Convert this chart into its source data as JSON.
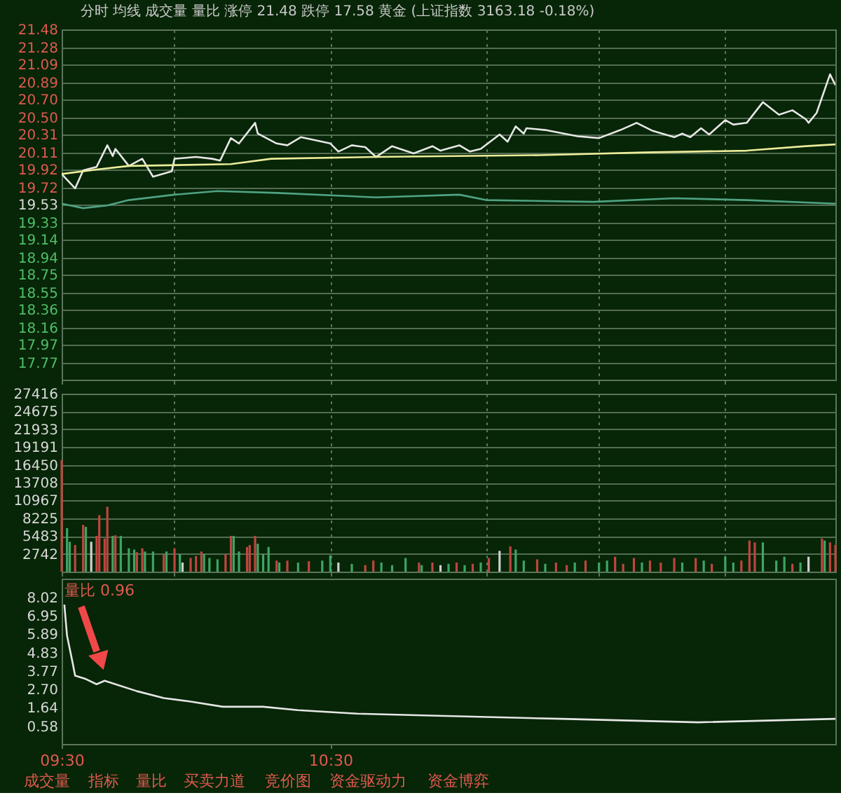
{
  "chart_data": [
    {
      "type": "line",
      "title": "分时 均线 成交量 量比 涨停 21.48 跌停 17.58 黄金 (上证指数 3163.18 -0.18%)",
      "series": [
        {
          "color": "#e6e6e6",
          "x": [
            9.5,
            9.55,
            9.58,
            9.63,
            9.67,
            9.69,
            9.7,
            9.75,
            9.8,
            9.84,
            9.91,
            9.92,
            10.0,
            10.06,
            10.09,
            10.13,
            10.16,
            10.22,
            10.23,
            10.3,
            10.34,
            10.39,
            10.5,
            10.53,
            10.58,
            10.63,
            10.67,
            10.73,
            10.81,
            10.88,
            10.91,
            10.98,
            11.02,
            11.06,
            11.13,
            11.16,
            11.19,
            11.22,
            11.23,
            11.3,
            11.42,
            11.5,
            11.58,
            11.64,
            11.7,
            11.78,
            11.81,
            11.84,
            11.88,
            11.91,
            11.97,
            12.0,
            12.05,
            12.11,
            12.17,
            12.22,
            12.27,
            12.28,
            12.31,
            12.36,
            12.38
          ],
          "values": [
            19.87,
            19.71,
            19.91,
            19.95,
            20.19,
            20.07,
            20.15,
            19.96,
            20.04,
            19.84,
            19.9,
            20.04,
            20.06,
            20.04,
            20.02,
            20.27,
            20.21,
            20.44,
            20.32,
            20.21,
            20.19,
            20.28,
            20.21,
            20.12,
            20.19,
            20.17,
            20.06,
            20.18,
            20.1,
            20.18,
            20.13,
            20.19,
            20.12,
            20.15,
            20.31,
            20.23,
            20.4,
            20.32,
            20.38,
            20.36,
            20.29,
            20.27,
            20.36,
            20.44,
            20.35,
            20.28,
            20.32,
            20.28,
            20.38,
            20.31,
            20.47,
            20.42,
            20.44,
            20.67,
            20.53,
            20.58,
            20.48,
            20.44,
            20.55,
            20.98,
            20.86
          ]
        },
        {
          "color": "#ecec9a",
          "x": [
            9.5,
            9.63,
            9.75,
            10.13,
            10.28,
            10.67,
            11.28,
            11.67,
            12.05,
            12.27,
            12.38
          ],
          "values": [
            19.87,
            19.92,
            19.96,
            19.98,
            20.04,
            20.06,
            20.08,
            20.11,
            20.13,
            20.18,
            20.2
          ]
        },
        {
          "color": "#4fa383",
          "x": [
            9.5,
            9.58,
            9.67,
            9.75,
            9.92,
            10.08,
            10.3,
            10.67,
            10.98,
            11.08,
            11.48,
            11.78,
            12.05,
            12.38
          ],
          "values": [
            19.54,
            19.49,
            19.52,
            19.58,
            19.64,
            19.68,
            19.66,
            19.61,
            19.64,
            19.58,
            19.56,
            19.6,
            19.58,
            19.54
          ]
        }
      ],
      "xlim": [
        9.5,
        12.38
      ],
      "xticks": [
        9.5,
        9.92,
        10.5,
        11.08,
        11.5,
        11.97
      ],
      "ylim": [
        17.58,
        21.48
      ],
      "yticks": [
        21.48,
        21.28,
        21.09,
        20.89,
        {
          "value": 20.7,
          "label": "20.70"
        },
        {
          "value": 20.5,
          "label": "20.50"
        },
        20.31,
        20.11,
        19.92,
        19.72,
        19.53,
        19.33,
        19.14,
        18.94,
        18.75,
        18.55,
        18.36,
        18.16,
        17.97,
        17.77
      ],
      "grid": true,
      "tick_labels": "y"
    },
    {
      "type": "bar",
      "x": [
        9.5,
        9.52,
        9.53,
        9.55,
        9.58,
        9.59,
        9.61,
        9.63,
        9.64,
        9.66,
        9.67,
        9.69,
        9.7,
        9.72,
        9.75,
        9.77,
        9.78,
        9.8,
        9.81,
        9.84,
        9.88,
        9.89,
        9.92,
        9.94,
        9.95,
        9.98,
        10.0,
        10.02,
        10.03,
        10.05,
        10.08,
        10.11,
        10.13,
        10.14,
        10.16,
        10.19,
        10.2,
        10.22,
        10.23,
        10.25,
        10.27,
        10.3,
        10.31,
        10.34,
        10.38,
        10.42,
        10.47,
        10.5,
        10.53,
        10.58,
        10.63,
        10.66,
        10.69,
        10.73,
        10.78,
        10.83,
        10.84,
        10.88,
        10.91,
        10.94,
        10.97,
        11.0,
        11.03,
        11.06,
        11.09,
        11.13,
        11.17,
        11.19,
        11.22,
        11.27,
        11.3,
        11.34,
        11.38,
        11.41,
        11.45,
        11.5,
        11.53,
        11.56,
        11.59,
        11.63,
        11.66,
        11.69,
        11.73,
        11.78,
        11.81,
        11.86,
        11.89,
        11.92,
        11.97,
        12.0,
        12.03,
        12.06,
        12.08,
        12.11,
        12.16,
        12.19,
        12.22,
        12.25,
        12.28,
        12.33,
        12.34,
        12.36,
        12.38
      ],
      "values": [
        17200,
        6700,
        4600,
        4100,
        7200,
        6900,
        4600,
        5500,
        8700,
        5100,
        10000,
        5500,
        5600,
        5500,
        3600,
        3400,
        3000,
        3600,
        3100,
        3100,
        2700,
        3100,
        3600,
        2700,
        1400,
        2100,
        2400,
        3100,
        2700,
        2100,
        1900,
        2700,
        5500,
        5500,
        3100,
        3800,
        4100,
        5500,
        4300,
        2700,
        3800,
        1700,
        1400,
        1700,
        1400,
        1600,
        1700,
        2500,
        1400,
        1200,
        1000,
        1700,
        1400,
        1000,
        2100,
        1400,
        1000,
        1400,
        1000,
        1200,
        1400,
        1000,
        1200,
        1400,
        2100,
        3200,
        3900,
        3400,
        1700,
        1900,
        1200,
        1400,
        1000,
        1400,
        1700,
        1400,
        1700,
        2300,
        1200,
        2100,
        1400,
        1700,
        1400,
        2100,
        1400,
        2100,
        1700,
        1200,
        2300,
        1400,
        1700,
        4800,
        4500,
        4500,
        1700,
        2300,
        1200,
        1400,
        2300,
        5100,
        4800,
        4500,
        4100
      ],
      "colors": [
        "#c0453f",
        "#3fa565",
        "#3fa565",
        "#c0453f",
        "#c0453f",
        "#3fa565",
        "#d0d0d0",
        "#c0453f",
        "#c0453f",
        "#c0453f",
        "#c0453f",
        "#3fa565",
        "#c0453f",
        "#3fa565",
        "#3fa565",
        "#3fa565",
        "#c0453f",
        "#c0453f",
        "#3fa565",
        "#3fa565",
        "#c0453f",
        "#3fa565",
        "#c0453f",
        "#3fa565",
        "#d0d0d0",
        "#c0453f",
        "#c0453f",
        "#c0453f",
        "#3fa565",
        "#3fa565",
        "#3fa565",
        "#c0453f",
        "#c0453f",
        "#3fa565",
        "#3fa565",
        "#c0453f",
        "#c0453f",
        "#c0453f",
        "#3fa565",
        "#3fa565",
        "#3fa565",
        "#c0453f",
        "#3fa565",
        "#c0453f",
        "#3fa565",
        "#c0453f",
        "#3fa565",
        "#3fa565",
        "#d0d0d0",
        "#3fa565",
        "#c0453f",
        "#c0453f",
        "#3fa565",
        "#3fa565",
        "#3fa565",
        "#c0453f",
        "#3fa565",
        "#c0453f",
        "#d0d0d0",
        "#3fa565",
        "#c0453f",
        "#3fa565",
        "#c0453f",
        "#3fa565",
        "#c0453f",
        "#d0d0d0",
        "#c0453f",
        "#3fa565",
        "#3fa565",
        "#c0453f",
        "#3fa565",
        "#c0453f",
        "#c0453f",
        "#3fa565",
        "#c0453f",
        "#3fa565",
        "#3fa565",
        "#c0453f",
        "#c0453f",
        "#c0453f",
        "#3fa565",
        "#c0453f",
        "#c0453f",
        "#c0453f",
        "#3fa565",
        "#c0453f",
        "#3fa565",
        "#c0453f",
        "#3fa565",
        "#3fa565",
        "#c0453f",
        "#c0453f",
        "#c0453f",
        "#3fa565",
        "#3fa565",
        "#3fa565",
        "#c0453f",
        "#3fa565",
        "#d0d0d0",
        "#c0453f",
        "#3fa565",
        "#c0453f",
        "#c0453f"
      ],
      "xlim": [
        9.5,
        12.38
      ],
      "xticks": [
        9.5,
        9.92,
        10.5,
        11.08,
        11.5,
        11.97
      ],
      "ylim": [
        0,
        27416
      ],
      "yticks": [
        2742,
        5483,
        8225,
        10967,
        13708,
        16450,
        19191,
        21933,
        24675,
        27416
      ],
      "grid": true,
      "tick_labels": "y"
    },
    {
      "type": "line",
      "series": [
        {
          "color": "#e6e6e6",
          "x": [
            9.51,
            9.52,
            9.54,
            9.55,
            9.59,
            9.63,
            9.66,
            9.68,
            9.78,
            9.88,
            9.98,
            10.1,
            10.25,
            10.38,
            10.6,
            10.85,
            11.36,
            11.87,
            12.38
          ],
          "values": [
            7.6,
            5.8,
            4.3,
            3.5,
            3.3,
            3.0,
            3.2,
            3.1,
            2.6,
            2.2,
            2.0,
            1.7,
            1.7,
            1.5,
            1.3,
            1.2,
            1.0,
            0.8,
            1.0
          ]
        }
      ],
      "xlim": [
        9.5,
        12.38
      ],
      "xticks": [
        {
          "value": 9.5,
          "label": "09:30"
        },
        {
          "value": 10.5,
          "label": "10:30"
        }
      ],
      "ylim": [
        -0.45,
        9.1
      ],
      "yticks": [
        0.58,
        1.64,
        {
          "value": 2.7,
          "label": "2.70"
        },
        3.77,
        4.83,
        5.89,
        6.95,
        8.02
      ],
      "grid": false,
      "annotations": [
        "量比 0.96",
        "成交量",
        "指标",
        "量比",
        "买卖力道",
        "竞价图",
        "资金驱动力",
        "资金博弈"
      ]
    }
  ]
}
